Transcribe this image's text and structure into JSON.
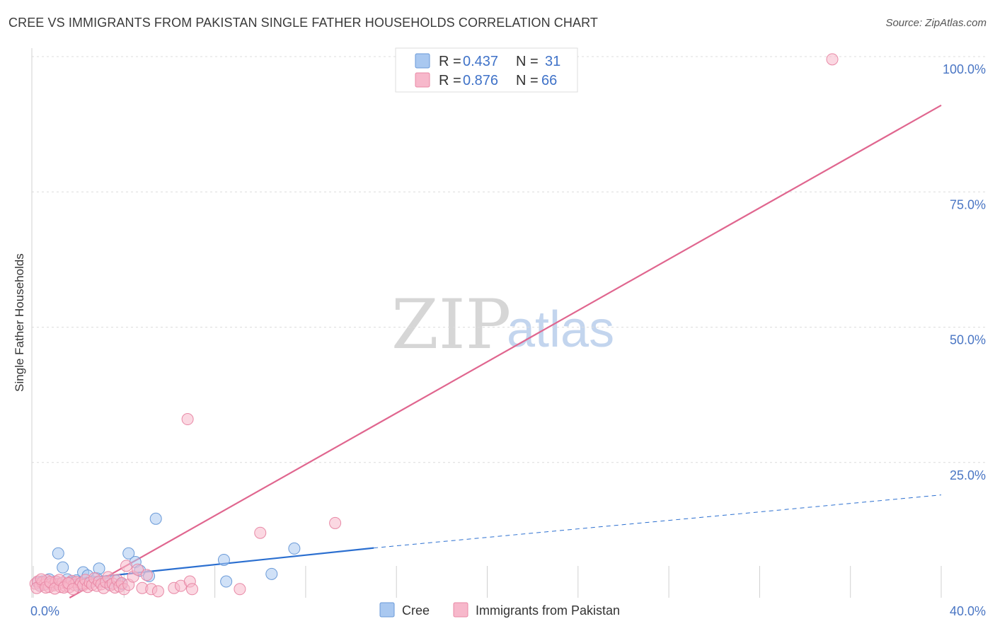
{
  "chart_data": {
    "type": "scatter",
    "title": "CREE VS IMMIGRANTS FROM PAKISTAN SINGLE FATHER HOUSEHOLDS CORRELATION CHART",
    "source": "Source: ZipAtlas.com",
    "xlabel": "",
    "ylabel": "Single Father Households",
    "xlim": [
      0,
      40
    ],
    "ylim": [
      0,
      100
    ],
    "x_ticks": [
      {
        "value": 0,
        "label": "0.0%"
      },
      {
        "value": 40,
        "label": "40.0%"
      }
    ],
    "y_ticks": [
      {
        "value": 25,
        "label": "25.0%"
      },
      {
        "value": 50,
        "label": "50.0%"
      },
      {
        "value": 75,
        "label": "75.0%"
      },
      {
        "value": 100,
        "label": "100.0%"
      }
    ],
    "watermark": {
      "zip": "ZIP",
      "atlas": "atlas"
    },
    "legend": {
      "r_label": "R =",
      "n_label": "N =",
      "entries": [
        {
          "name": "Cree",
          "r": "0.437",
          "n": "31",
          "color": "#a9c8f0",
          "stroke": "#6a9ad8"
        },
        {
          "name": "Immigrants from Pakistan",
          "r": "0.876",
          "n": "66",
          "color": "#f7b8cb",
          "stroke": "#e889a6"
        }
      ]
    },
    "series": [
      {
        "name": "Cree",
        "color": "#a9c8f0",
        "stroke": "#6a9ad8",
        "points": [
          [
            0.2,
            2.8
          ],
          [
            0.4,
            3.0
          ],
          [
            0.5,
            2.5
          ],
          [
            0.7,
            3.4
          ],
          [
            0.9,
            2.6
          ],
          [
            1.0,
            3.0
          ],
          [
            1.1,
            8.2
          ],
          [
            1.3,
            5.6
          ],
          [
            1.5,
            3.4
          ],
          [
            1.7,
            2.9
          ],
          [
            1.9,
            3.2
          ],
          [
            2.0,
            2.4
          ],
          [
            2.2,
            4.7
          ],
          [
            2.4,
            4.1
          ],
          [
            2.6,
            3.0
          ],
          [
            2.8,
            3.6
          ],
          [
            2.9,
            5.4
          ],
          [
            3.1,
            3.0
          ],
          [
            3.3,
            2.6
          ],
          [
            3.6,
            3.2
          ],
          [
            3.9,
            2.5
          ],
          [
            4.2,
            8.2
          ],
          [
            4.5,
            6.6
          ],
          [
            4.7,
            5.0
          ],
          [
            5.1,
            4.0
          ],
          [
            5.4,
            14.6
          ],
          [
            8.4,
            7.0
          ],
          [
            8.5,
            3.0
          ],
          [
            10.5,
            4.4
          ],
          [
            11.5,
            9.1
          ],
          [
            0.3,
            2.2
          ]
        ]
      },
      {
        "name": "Immigrants from Pakistan",
        "color": "#f7b8cb",
        "stroke": "#e889a6",
        "points": [
          [
            0.1,
            2.6
          ],
          [
            0.2,
            3.0
          ],
          [
            0.3,
            2.2
          ],
          [
            0.4,
            2.8
          ],
          [
            0.5,
            2.4
          ],
          [
            0.6,
            3.2
          ],
          [
            0.7,
            2.0
          ],
          [
            0.8,
            2.6
          ],
          [
            0.9,
            2.3
          ],
          [
            1.0,
            3.0
          ],
          [
            1.1,
            2.5
          ],
          [
            1.2,
            2.0
          ],
          [
            1.3,
            2.8
          ],
          [
            1.4,
            2.2
          ],
          [
            1.5,
            2.6
          ],
          [
            1.6,
            2.0
          ],
          [
            1.7,
            3.1
          ],
          [
            1.8,
            2.4
          ],
          [
            1.9,
            2.9
          ],
          [
            2.0,
            2.1
          ],
          [
            2.1,
            2.7
          ],
          [
            2.2,
            2.3
          ],
          [
            2.3,
            3.3
          ],
          [
            2.4,
            2.0
          ],
          [
            2.5,
            2.8
          ],
          [
            2.6,
            2.4
          ],
          [
            2.7,
            3.6
          ],
          [
            2.8,
            2.2
          ],
          [
            2.9,
            3.0
          ],
          [
            3.0,
            2.5
          ],
          [
            3.1,
            1.8
          ],
          [
            3.2,
            2.9
          ],
          [
            3.3,
            3.8
          ],
          [
            3.4,
            2.3
          ],
          [
            3.5,
            2.6
          ],
          [
            3.6,
            1.9
          ],
          [
            3.7,
            3.3
          ],
          [
            3.8,
            2.1
          ],
          [
            3.9,
            2.7
          ],
          [
            4.0,
            1.6
          ],
          [
            4.1,
            5.9
          ],
          [
            4.2,
            2.4
          ],
          [
            4.4,
            3.9
          ],
          [
            4.6,
            5.2
          ],
          [
            4.8,
            1.8
          ],
          [
            5.0,
            4.2
          ],
          [
            5.2,
            1.6
          ],
          [
            5.5,
            1.2
          ],
          [
            6.2,
            1.8
          ],
          [
            6.5,
            2.2
          ],
          [
            6.8,
            33.0
          ],
          [
            6.9,
            3.0
          ],
          [
            7.0,
            1.6
          ],
          [
            9.1,
            1.6
          ],
          [
            10.0,
            12.0
          ],
          [
            13.3,
            13.8
          ],
          [
            35.2,
            99.5
          ],
          [
            0.15,
            1.8
          ],
          [
            0.35,
            3.4
          ],
          [
            0.55,
            1.9
          ],
          [
            0.75,
            2.9
          ],
          [
            0.95,
            1.7
          ],
          [
            1.15,
            3.3
          ],
          [
            1.35,
            1.9
          ],
          [
            1.55,
            2.7
          ],
          [
            1.75,
            1.6
          ]
        ]
      }
    ],
    "trend_lines": [
      {
        "name": "Cree",
        "color": "#2b6fd0",
        "from": [
          0,
          2.6
        ],
        "to": [
          15,
          9.2
        ],
        "dashed_to": [
          40,
          19.0
        ]
      },
      {
        "name": "Immigrants from Pakistan",
        "color": "#e0668f",
        "from": [
          1.6,
          0
        ],
        "to": [
          40,
          91.0
        ]
      }
    ]
  }
}
